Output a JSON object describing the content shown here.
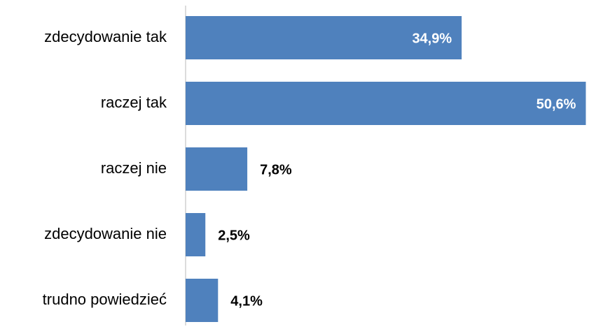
{
  "chart_data": {
    "type": "hbar",
    "categories": [
      "zdecydowanie tak",
      "raczej tak",
      "raczej nie",
      "zdecydowanie nie",
      "trudno powiedzieć"
    ],
    "values": [
      34.9,
      50.6,
      7.8,
      2.5,
      4.1
    ],
    "value_labels": [
      "34,9%",
      "50,6%",
      "7,8%",
      "2,5%",
      "4,1%"
    ],
    "color": "#4f81bd",
    "xlim": [
      0,
      51
    ]
  }
}
